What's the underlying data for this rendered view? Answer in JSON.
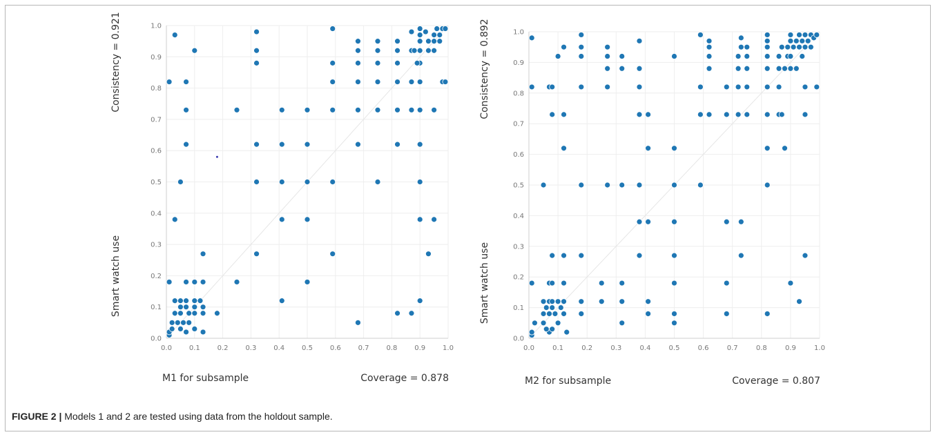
{
  "figure": {
    "caption_label": "FIGURE 2 |",
    "caption_text": " Models 1 and 2 are tested using data from the holdout sample."
  },
  "colors": {
    "point": "#1f77b4",
    "grid": "#eeeeee",
    "axis": "#cfcfcf",
    "diagonal": "#e6e6e6",
    "text": "#333333",
    "tick": "#777777"
  },
  "chart_data": [
    {
      "type": "scatter",
      "title": "",
      "xlabel": "M1 for subsample",
      "ylabel": "Smart watch use",
      "consistency_label": "Consistency = 0.921",
      "coverage_label": "Coverage = 0.878",
      "xlim": [
        0,
        1
      ],
      "ylim": [
        0,
        1
      ],
      "xticks": [
        "0.0",
        "0.1",
        "0.2",
        "0.3",
        "0.4",
        "0.5",
        "0.6",
        "0.7",
        "0.8",
        "0.9",
        "1.0"
      ],
      "yticks": [
        "0.0",
        "0.1",
        "0.2",
        "0.3",
        "0.4",
        "0.5",
        "0.6",
        "0.7",
        "0.8",
        "0.9",
        "1.0"
      ],
      "grid": true,
      "diagonal": true,
      "points": [
        [
          0.01,
          0.01
        ],
        [
          0.01,
          0.02
        ],
        [
          0.02,
          0.03
        ],
        [
          0.02,
          0.05
        ],
        [
          0.03,
          0.08
        ],
        [
          0.03,
          0.12
        ],
        [
          0.05,
          0.12
        ],
        [
          0.07,
          0.12
        ],
        [
          0.1,
          0.12
        ],
        [
          0.12,
          0.12
        ],
        [
          0.04,
          0.05
        ],
        [
          0.06,
          0.05
        ],
        [
          0.08,
          0.05
        ],
        [
          0.05,
          0.03
        ],
        [
          0.07,
          0.02
        ],
        [
          0.1,
          0.03
        ],
        [
          0.13,
          0.02
        ],
        [
          0.05,
          0.08
        ],
        [
          0.08,
          0.08
        ],
        [
          0.1,
          0.08
        ],
        [
          0.13,
          0.08
        ],
        [
          0.05,
          0.1
        ],
        [
          0.07,
          0.1
        ],
        [
          0.1,
          0.1
        ],
        [
          0.13,
          0.1
        ],
        [
          0.01,
          0.18
        ],
        [
          0.07,
          0.18
        ],
        [
          0.1,
          0.18
        ],
        [
          0.13,
          0.18
        ],
        [
          0.13,
          0.27
        ],
        [
          0.03,
          0.38
        ],
        [
          0.05,
          0.5
        ],
        [
          0.07,
          0.62
        ],
        [
          0.07,
          0.73
        ],
        [
          0.01,
          0.82
        ],
        [
          0.07,
          0.82
        ],
        [
          0.1,
          0.92
        ],
        [
          0.03,
          0.97
        ],
        [
          0.18,
          0.08
        ],
        [
          0.25,
          0.18
        ],
        [
          0.25,
          0.73
        ],
        [
          0.32,
          0.27
        ],
        [
          0.32,
          0.5
        ],
        [
          0.32,
          0.62
        ],
        [
          0.32,
          0.88
        ],
        [
          0.32,
          0.92
        ],
        [
          0.32,
          0.98
        ],
        [
          0.41,
          0.12
        ],
        [
          0.41,
          0.38
        ],
        [
          0.41,
          0.5
        ],
        [
          0.41,
          0.62
        ],
        [
          0.41,
          0.73
        ],
        [
          0.5,
          0.18
        ],
        [
          0.5,
          0.38
        ],
        [
          0.5,
          0.5
        ],
        [
          0.5,
          0.62
        ],
        [
          0.5,
          0.73
        ],
        [
          0.59,
          0.27
        ],
        [
          0.59,
          0.5
        ],
        [
          0.59,
          0.73
        ],
        [
          0.59,
          0.82
        ],
        [
          0.59,
          0.88
        ],
        [
          0.59,
          0.99
        ],
        [
          0.68,
          0.05
        ],
        [
          0.68,
          0.62
        ],
        [
          0.68,
          0.73
        ],
        [
          0.68,
          0.82
        ],
        [
          0.68,
          0.88
        ],
        [
          0.68,
          0.92
        ],
        [
          0.68,
          0.95
        ],
        [
          0.75,
          0.5
        ],
        [
          0.75,
          0.73
        ],
        [
          0.75,
          0.82
        ],
        [
          0.75,
          0.88
        ],
        [
          0.75,
          0.92
        ],
        [
          0.75,
          0.95
        ],
        [
          0.82,
          0.08
        ],
        [
          0.82,
          0.62
        ],
        [
          0.82,
          0.73
        ],
        [
          0.82,
          0.82
        ],
        [
          0.82,
          0.88
        ],
        [
          0.82,
          0.92
        ],
        [
          0.82,
          0.95
        ],
        [
          0.87,
          0.08
        ],
        [
          0.87,
          0.73
        ],
        [
          0.87,
          0.82
        ],
        [
          0.87,
          0.92
        ],
        [
          0.87,
          0.98
        ],
        [
          0.9,
          0.12
        ],
        [
          0.9,
          0.38
        ],
        [
          0.9,
          0.5
        ],
        [
          0.9,
          0.62
        ],
        [
          0.9,
          0.73
        ],
        [
          0.9,
          0.82
        ],
        [
          0.9,
          0.88
        ],
        [
          0.9,
          0.92
        ],
        [
          0.9,
          0.95
        ],
        [
          0.9,
          0.97
        ],
        [
          0.9,
          0.99
        ],
        [
          0.93,
          0.27
        ],
        [
          0.95,
          0.38
        ],
        [
          0.95,
          0.73
        ],
        [
          0.92,
          0.98
        ],
        [
          0.93,
          0.92
        ],
        [
          0.93,
          0.95
        ],
        [
          0.95,
          0.92
        ],
        [
          0.95,
          0.95
        ],
        [
          0.95,
          0.97
        ],
        [
          0.96,
          0.99
        ],
        [
          0.97,
          0.95
        ],
        [
          0.97,
          0.97
        ],
        [
          0.98,
          0.99
        ],
        [
          0.99,
          0.99
        ],
        [
          0.98,
          0.82
        ],
        [
          0.99,
          0.82
        ],
        [
          0.88,
          0.92
        ],
        [
          0.89,
          0.88
        ]
      ],
      "outlier_point": [
        0.18,
        0.58
      ]
    },
    {
      "type": "scatter",
      "title": "",
      "xlabel": "M2 for subsample",
      "ylabel": "Smart watch use",
      "consistency_label": "Consistency = 0.892",
      "coverage_label": "Coverage = 0.807",
      "xlim": [
        0,
        1
      ],
      "ylim": [
        0,
        1
      ],
      "xticks": [
        "0.0",
        "0.1",
        "0.2",
        "0.3",
        "0.4",
        "0.5",
        "0.6",
        "0.7",
        "0.8",
        "0.9",
        "1.0"
      ],
      "yticks": [
        "0.0",
        "0.1",
        "0.2",
        "0.3",
        "0.4",
        "0.5",
        "0.6",
        "0.7",
        "0.8",
        "0.9",
        "1.0"
      ],
      "grid": true,
      "diagonal": true,
      "points": [
        [
          0.01,
          0.01
        ],
        [
          0.01,
          0.02
        ],
        [
          0.02,
          0.05
        ],
        [
          0.05,
          0.05
        ],
        [
          0.07,
          0.02
        ],
        [
          0.08,
          0.03
        ],
        [
          0.06,
          0.03
        ],
        [
          0.1,
          0.05
        ],
        [
          0.13,
          0.02
        ],
        [
          0.05,
          0.08
        ],
        [
          0.07,
          0.08
        ],
        [
          0.09,
          0.08
        ],
        [
          0.12,
          0.08
        ],
        [
          0.06,
          0.1
        ],
        [
          0.08,
          0.1
        ],
        [
          0.11,
          0.1
        ],
        [
          0.05,
          0.12
        ],
        [
          0.07,
          0.12
        ],
        [
          0.08,
          0.12
        ],
        [
          0.1,
          0.12
        ],
        [
          0.12,
          0.12
        ],
        [
          0.01,
          0.18
        ],
        [
          0.07,
          0.18
        ],
        [
          0.08,
          0.18
        ],
        [
          0.12,
          0.18
        ],
        [
          0.08,
          0.27
        ],
        [
          0.12,
          0.27
        ],
        [
          0.05,
          0.5
        ],
        [
          0.12,
          0.62
        ],
        [
          0.08,
          0.73
        ],
        [
          0.12,
          0.73
        ],
        [
          0.01,
          0.82
        ],
        [
          0.07,
          0.82
        ],
        [
          0.08,
          0.82
        ],
        [
          0.1,
          0.92
        ],
        [
          0.12,
          0.95
        ],
        [
          0.01,
          0.98
        ],
        [
          0.18,
          0.08
        ],
        [
          0.18,
          0.12
        ],
        [
          0.18,
          0.27
        ],
        [
          0.18,
          0.5
        ],
        [
          0.18,
          0.82
        ],
        [
          0.18,
          0.92
        ],
        [
          0.18,
          0.95
        ],
        [
          0.18,
          0.99
        ],
        [
          0.25,
          0.12
        ],
        [
          0.25,
          0.18
        ],
        [
          0.27,
          0.5
        ],
        [
          0.27,
          0.82
        ],
        [
          0.27,
          0.88
        ],
        [
          0.27,
          0.92
        ],
        [
          0.27,
          0.95
        ],
        [
          0.32,
          0.05
        ],
        [
          0.32,
          0.12
        ],
        [
          0.32,
          0.18
        ],
        [
          0.32,
          0.5
        ],
        [
          0.32,
          0.88
        ],
        [
          0.32,
          0.92
        ],
        [
          0.38,
          0.27
        ],
        [
          0.38,
          0.38
        ],
        [
          0.38,
          0.5
        ],
        [
          0.38,
          0.73
        ],
        [
          0.38,
          0.82
        ],
        [
          0.38,
          0.88
        ],
        [
          0.38,
          0.97
        ],
        [
          0.41,
          0.08
        ],
        [
          0.41,
          0.12
        ],
        [
          0.41,
          0.38
        ],
        [
          0.41,
          0.62
        ],
        [
          0.41,
          0.73
        ],
        [
          0.5,
          0.05
        ],
        [
          0.5,
          0.08
        ],
        [
          0.5,
          0.18
        ],
        [
          0.5,
          0.27
        ],
        [
          0.5,
          0.38
        ],
        [
          0.5,
          0.5
        ],
        [
          0.5,
          0.62
        ],
        [
          0.5,
          0.92
        ],
        [
          0.59,
          0.5
        ],
        [
          0.59,
          0.73
        ],
        [
          0.59,
          0.82
        ],
        [
          0.59,
          0.99
        ],
        [
          0.62,
          0.73
        ],
        [
          0.62,
          0.88
        ],
        [
          0.62,
          0.92
        ],
        [
          0.62,
          0.95
        ],
        [
          0.62,
          0.97
        ],
        [
          0.68,
          0.08
        ],
        [
          0.68,
          0.18
        ],
        [
          0.68,
          0.38
        ],
        [
          0.68,
          0.73
        ],
        [
          0.68,
          0.82
        ],
        [
          0.73,
          0.27
        ],
        [
          0.73,
          0.38
        ],
        [
          0.72,
          0.73
        ],
        [
          0.72,
          0.82
        ],
        [
          0.72,
          0.88
        ],
        [
          0.72,
          0.92
        ],
        [
          0.73,
          0.95
        ],
        [
          0.73,
          0.98
        ],
        [
          0.75,
          0.73
        ],
        [
          0.75,
          0.82
        ],
        [
          0.75,
          0.88
        ],
        [
          0.75,
          0.92
        ],
        [
          0.75,
          0.95
        ],
        [
          0.82,
          0.08
        ],
        [
          0.82,
          0.5
        ],
        [
          0.82,
          0.62
        ],
        [
          0.82,
          0.73
        ],
        [
          0.82,
          0.82
        ],
        [
          0.82,
          0.88
        ],
        [
          0.82,
          0.92
        ],
        [
          0.82,
          0.95
        ],
        [
          0.82,
          0.97
        ],
        [
          0.82,
          0.99
        ],
        [
          0.86,
          0.73
        ],
        [
          0.87,
          0.73
        ],
        [
          0.86,
          0.82
        ],
        [
          0.86,
          0.88
        ],
        [
          0.86,
          0.92
        ],
        [
          0.87,
          0.95
        ],
        [
          0.88,
          0.62
        ],
        [
          0.88,
          0.88
        ],
        [
          0.89,
          0.92
        ],
        [
          0.89,
          0.95
        ],
        [
          0.9,
          0.88
        ],
        [
          0.9,
          0.92
        ],
        [
          0.9,
          0.97
        ],
        [
          0.9,
          0.99
        ],
        [
          0.9,
          0.18
        ],
        [
          0.91,
          0.95
        ],
        [
          0.92,
          0.88
        ],
        [
          0.92,
          0.97
        ],
        [
          0.93,
          0.12
        ],
        [
          0.93,
          0.95
        ],
        [
          0.93,
          0.99
        ],
        [
          0.94,
          0.92
        ],
        [
          0.94,
          0.97
        ],
        [
          0.95,
          0.27
        ],
        [
          0.95,
          0.73
        ],
        [
          0.95,
          0.82
        ],
        [
          0.95,
          0.95
        ],
        [
          0.95,
          0.99
        ],
        [
          0.96,
          0.97
        ],
        [
          0.97,
          0.95
        ],
        [
          0.97,
          0.99
        ],
        [
          0.98,
          0.98
        ],
        [
          0.99,
          0.99
        ],
        [
          0.99,
          0.82
        ]
      ]
    }
  ]
}
